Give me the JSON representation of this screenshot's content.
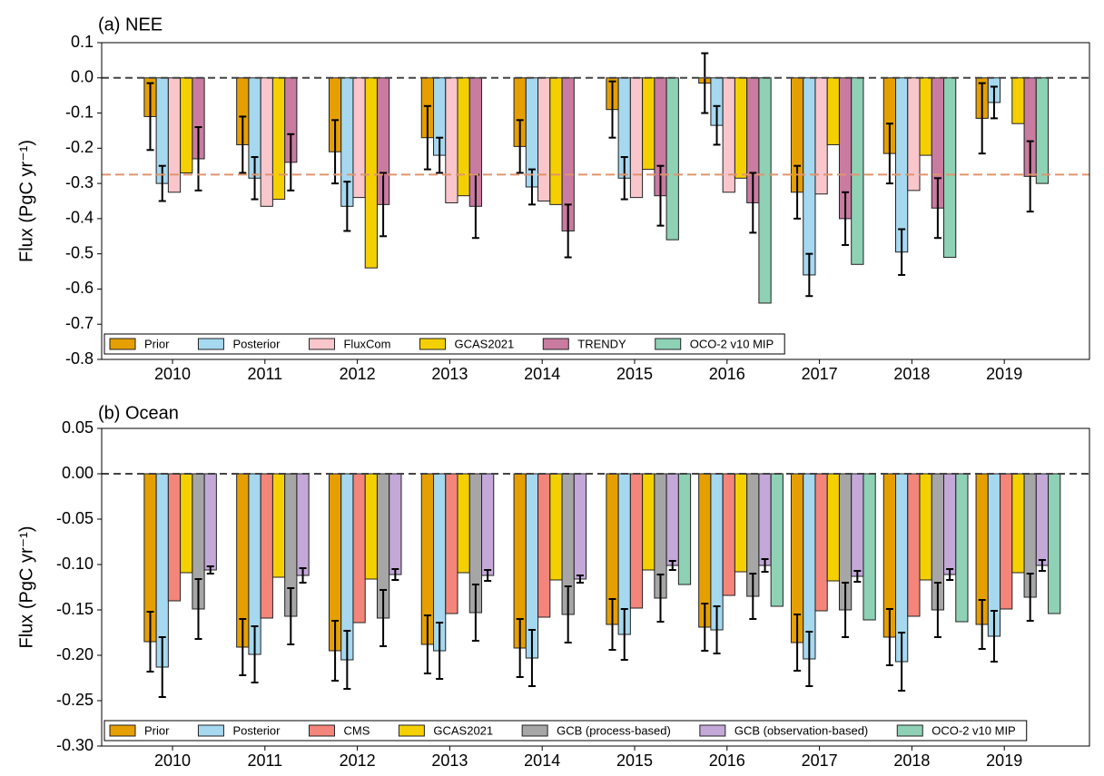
{
  "chart_data": [
    {
      "type": "bar",
      "title": "(a) NEE",
      "ylabel": "Flux (PgC yr⁻¹)",
      "categories": [
        "2010",
        "2011",
        "2012",
        "2013",
        "2014",
        "2015",
        "2016",
        "2017",
        "2018",
        "2019"
      ],
      "ylim": [
        -0.8,
        0.1
      ],
      "yticks": [
        0.1,
        {
          "value": 0,
          "label": "0.0"
        },
        -0.1,
        -0.2,
        -0.3,
        -0.4,
        -0.5,
        -0.6,
        -0.7,
        -0.8
      ],
      "zero_line": true,
      "legend": "lower left",
      "hline": {
        "value": -0.275,
        "color": "#e0956e"
      },
      "series": [
        {
          "name": "Prior",
          "color": "#e69f00",
          "values": [
            -0.11,
            -0.19,
            -0.21,
            -0.17,
            -0.195,
            -0.09,
            -0.015,
            -0.325,
            -0.215,
            -0.115
          ],
          "errors": [
            0.095,
            0.08,
            0.09,
            0.09,
            0.075,
            0.08,
            0.085,
            0.075,
            0.085,
            0.1
          ]
        },
        {
          "name": "Posterior",
          "color": "#a6d8f0",
          "values": [
            -0.3,
            -0.285,
            -0.365,
            -0.22,
            -0.31,
            -0.285,
            -0.135,
            -0.56,
            -0.495,
            -0.07
          ],
          "errors": [
            0.05,
            0.06,
            0.07,
            0.05,
            0.05,
            0.06,
            0.055,
            0.06,
            0.065,
            0.045
          ]
        },
        {
          "name": "FluxCom",
          "color": "#f9c6cc",
          "values": [
            -0.325,
            -0.365,
            -0.34,
            -0.355,
            -0.35,
            -0.34,
            -0.325,
            -0.33,
            -0.32,
            null
          ],
          "errors": [
            null,
            null,
            null,
            null,
            null,
            null,
            null,
            null,
            null,
            null
          ]
        },
        {
          "name": "GCAS2021",
          "color": "#f5d000",
          "values": [
            -0.27,
            -0.345,
            -0.54,
            -0.335,
            -0.36,
            -0.26,
            -0.285,
            -0.19,
            -0.22,
            -0.13
          ],
          "errors": [
            null,
            null,
            null,
            null,
            null,
            null,
            null,
            null,
            null,
            null
          ]
        },
        {
          "name": "TRENDY",
          "color": "#c97ba0",
          "values": [
            -0.23,
            -0.24,
            -0.36,
            -0.365,
            -0.435,
            -0.335,
            -0.355,
            -0.4,
            -0.37,
            -0.28
          ],
          "errors": [
            0.09,
            0.08,
            0.09,
            0.09,
            0.075,
            0.085,
            0.085,
            0.075,
            0.085,
            0.1
          ]
        },
        {
          "name": "OCO-2 v10 MIP",
          "color": "#8fd1b5",
          "values": [
            null,
            null,
            null,
            null,
            null,
            -0.46,
            -0.64,
            -0.53,
            -0.51,
            -0.3
          ],
          "errors": [
            null,
            null,
            null,
            null,
            null,
            null,
            null,
            null,
            null,
            null
          ]
        }
      ]
    },
    {
      "type": "bar",
      "title": "(b) Ocean",
      "ylabel": "Flux (PgC yr⁻¹)",
      "categories": [
        "2010",
        "2011",
        "2012",
        "2013",
        "2014",
        "2015",
        "2016",
        "2017",
        "2018",
        "2019"
      ],
      "ylim": [
        -0.3,
        0.05
      ],
      "yticks": [
        0.05,
        {
          "value": 0,
          "label": "0.00"
        },
        -0.05,
        {
          "value": -0.1,
          "label": "-0.10"
        },
        -0.15,
        {
          "value": -0.2,
          "label": "-0.20"
        },
        -0.25,
        {
          "value": -0.3,
          "label": "-0.30"
        }
      ],
      "zero_line": true,
      "legend": "lower left",
      "series": [
        {
          "name": "Prior",
          "color": "#e69f00",
          "values": [
            -0.185,
            -0.191,
            -0.195,
            -0.188,
            -0.192,
            -0.166,
            -0.169,
            -0.186,
            -0.18,
            -0.166
          ],
          "errors": [
            0.033,
            0.031,
            0.033,
            0.032,
            0.032,
            0.028,
            0.026,
            0.031,
            0.031,
            0.027
          ]
        },
        {
          "name": "Posterior",
          "color": "#a6d8f0",
          "values": [
            -0.213,
            -0.199,
            -0.205,
            -0.195,
            -0.203,
            -0.177,
            -0.172,
            -0.204,
            -0.207,
            -0.179
          ],
          "errors": [
            0.033,
            0.031,
            0.032,
            0.031,
            0.031,
            0.028,
            0.026,
            0.03,
            0.032,
            0.028
          ]
        },
        {
          "name": "CMS",
          "color": "#f4857a",
          "values": [
            -0.14,
            -0.159,
            -0.164,
            -0.154,
            -0.158,
            -0.148,
            -0.134,
            -0.151,
            -0.157,
            -0.149
          ],
          "errors": [
            null,
            null,
            null,
            null,
            null,
            null,
            null,
            null,
            null,
            null
          ]
        },
        {
          "name": "GCAS2021",
          "color": "#f5d000",
          "values": [
            -0.109,
            -0.114,
            -0.116,
            -0.109,
            -0.117,
            -0.106,
            -0.108,
            -0.118,
            -0.117,
            -0.109
          ],
          "errors": [
            null,
            null,
            null,
            null,
            null,
            null,
            null,
            null,
            null,
            null
          ]
        },
        {
          "name": "GCB (process-based)",
          "color": "#a6a6a6",
          "values": [
            -0.149,
            -0.157,
            -0.159,
            -0.153,
            -0.155,
            -0.137,
            -0.135,
            -0.15,
            -0.15,
            -0.136
          ],
          "errors": [
            0.033,
            0.031,
            0.031,
            0.031,
            0.031,
            0.026,
            0.025,
            0.03,
            0.03,
            0.026
          ]
        },
        {
          "name": "GCB (observation-based)",
          "color": "#c3a8d8",
          "values": [
            -0.106,
            -0.112,
            -0.111,
            -0.112,
            -0.116,
            -0.101,
            -0.101,
            -0.113,
            -0.111,
            -0.101
          ],
          "errors": [
            0.004,
            0.008,
            0.006,
            0.006,
            0.004,
            0.005,
            0.007,
            0.006,
            0.006,
            0.006
          ]
        },
        {
          "name": "OCO-2 v10 MIP",
          "color": "#8fd1b5",
          "values": [
            null,
            null,
            null,
            null,
            null,
            -0.122,
            -0.146,
            -0.161,
            -0.163,
            -0.154
          ],
          "errors": [
            null,
            null,
            null,
            null,
            null,
            null,
            null,
            null,
            null,
            null
          ]
        }
      ]
    }
  ]
}
